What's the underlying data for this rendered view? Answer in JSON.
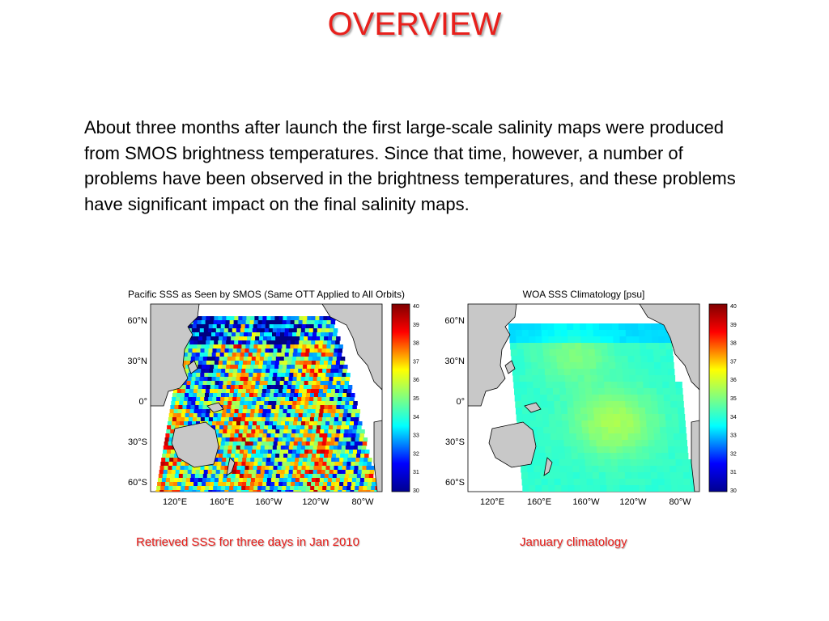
{
  "title": "OVERVIEW",
  "body_text": "About three months after launch the first large-scale salinity maps were produced from SMOS brightness temperatures. Since that time, however, a number of problems have been observed in the brightness temperatures, and these problems have significant impact on the final salinity maps.",
  "maps": [
    {
      "title": "Pacific SSS as Seen by SMOS (Same OTT Applied to All Orbits)",
      "caption": "Retrieved SSS for three days in Jan 2010",
      "lat_labels": [
        "60°N",
        "30°N",
        "0°",
        "30°S",
        "60°S"
      ],
      "lon_labels": [
        "120°E",
        "160°E",
        "160°W",
        "120°W",
        "80°W"
      ],
      "colorbar": {
        "min": 30,
        "max": 40,
        "ticks": [
          "40",
          "39",
          "38",
          "37",
          "36",
          "35",
          "34",
          "33",
          "32",
          "31",
          "30"
        ]
      },
      "pattern": "noisy"
    },
    {
      "title": "WOA SSS Climatology [psu]",
      "caption": "January climatology",
      "lat_labels": [
        "60°N",
        "30°N",
        "0°",
        "30°S",
        "60°S"
      ],
      "lon_labels": [
        "120°E",
        "160°E",
        "160°W",
        "120°W",
        "80°W"
      ],
      "colorbar": {
        "min": 30,
        "max": 40,
        "ticks": [
          "40",
          "39",
          "38",
          "37",
          "36",
          "35",
          "34",
          "33",
          "32",
          "31",
          "30"
        ]
      },
      "pattern": "smooth"
    }
  ],
  "colors": {
    "title": "#e8201c",
    "caption": "#e8201c",
    "land": "#c8c8c8",
    "land_outline": "#000000"
  }
}
